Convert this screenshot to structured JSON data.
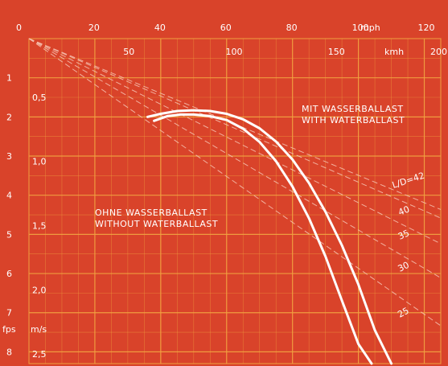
{
  "chart_data": {
    "type": "line",
    "title": "",
    "axes": {
      "x_top": {
        "unit": "mph",
        "ticks": [
          "0",
          "20",
          "40",
          "60",
          "80",
          "100",
          "120"
        ],
        "min": 0,
        "max": 125
      },
      "x_inner": {
        "unit": "kmh",
        "ticks": [
          "50",
          "100",
          "150",
          "200"
        ]
      },
      "y_left": {
        "unit": "fps",
        "ticks": [
          "1",
          "2",
          "3",
          "4",
          "5",
          "6",
          "7",
          "8"
        ],
        "min": 0,
        "max": 8.3
      },
      "y_inner": {
        "unit": "m/s",
        "ticks": [
          "0,5",
          "1,0",
          "1,5",
          "2,0",
          "2,5"
        ]
      }
    },
    "glide_ratio_label_prefix": "L/D",
    "glide_ratio_lines": [
      {
        "ld": 42,
        "label": "L/D=42"
      },
      {
        "ld": 40,
        "label": "40"
      },
      {
        "ld": 35,
        "label": "35"
      },
      {
        "ld": 30,
        "label": "30"
      },
      {
        "ld": 25,
        "label": "25"
      }
    ],
    "series": [
      {
        "name": "MIT WASSERBALLAST / WITH WATERBALLAST",
        "x": [
          36,
          40,
          45,
          50,
          55,
          60,
          65,
          70,
          75,
          80,
          85,
          90,
          95,
          100,
          105,
          110
        ],
        "y": [
          2.0,
          1.92,
          1.85,
          1.83,
          1.85,
          1.92,
          2.06,
          2.29,
          2.63,
          3.09,
          3.69,
          4.42,
          5.28,
          6.28,
          7.45,
          8.3
        ]
      },
      {
        "name": "OHNE WASSERBALLAST / WITHOUT WATERBALLAST",
        "x": [
          38,
          42,
          46,
          50,
          55,
          60,
          65,
          70,
          75,
          80,
          85,
          90,
          95,
          100,
          104
        ],
        "y": [
          2.1,
          1.98,
          1.94,
          1.94,
          1.98,
          2.08,
          2.3,
          2.64,
          3.13,
          3.78,
          4.59,
          5.56,
          6.69,
          7.8,
          8.3
        ]
      }
    ],
    "annotations": {
      "with_ballast_line1": "MIT WASSERBALLAST",
      "with_ballast_line2": "WITH WATERBALLAST",
      "without_ballast_line1": "OHNE WASSERBALLAST",
      "without_ballast_line2": "WITHOUT WATERBALLAST"
    },
    "grid": true,
    "colors": {
      "background": "#d9432a",
      "grid": "#f0a040",
      "curve": "#ffffff",
      "ld_line": "#f6c4b4"
    }
  }
}
